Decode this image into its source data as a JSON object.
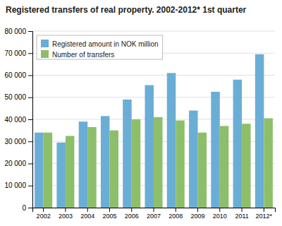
{
  "chart_data": {
    "type": "bar",
    "title": "Registered transfers of real property. 2002-2012* 1st quarter",
    "categories": [
      "2002",
      "2003",
      "2004",
      "2005",
      "2006",
      "2007",
      "2008",
      "2009",
      "2010",
      "2011",
      "2012*"
    ],
    "series": [
      {
        "name": "Registered amount in NOK million",
        "color": "#6aaed6",
        "values": [
          34000,
          29500,
          39000,
          41500,
          49000,
          55500,
          61000,
          44000,
          52500,
          58000,
          69500
        ]
      },
      {
        "name": "Number of transfers",
        "color": "#8dbf6a",
        "values": [
          34000,
          32500,
          36500,
          35000,
          40000,
          41000,
          39500,
          34000,
          37000,
          38000,
          40500
        ]
      }
    ],
    "ylim": [
      0,
      80000
    ],
    "yticks": [
      0,
      {
        "value": 10000,
        "label": "10 000"
      },
      {
        "value": 20000,
        "label": "20 000"
      },
      {
        "value": 30000,
        "label": "30 000"
      },
      {
        "value": 40000,
        "label": "40 000"
      },
      {
        "value": 50000,
        "label": "50 000"
      },
      {
        "value": 60000,
        "label": "60 000"
      },
      {
        "value": 70000,
        "label": "70 000"
      },
      {
        "value": 80000,
        "label": "80 000"
      }
    ],
    "grid": true,
    "legend": "upper left"
  }
}
